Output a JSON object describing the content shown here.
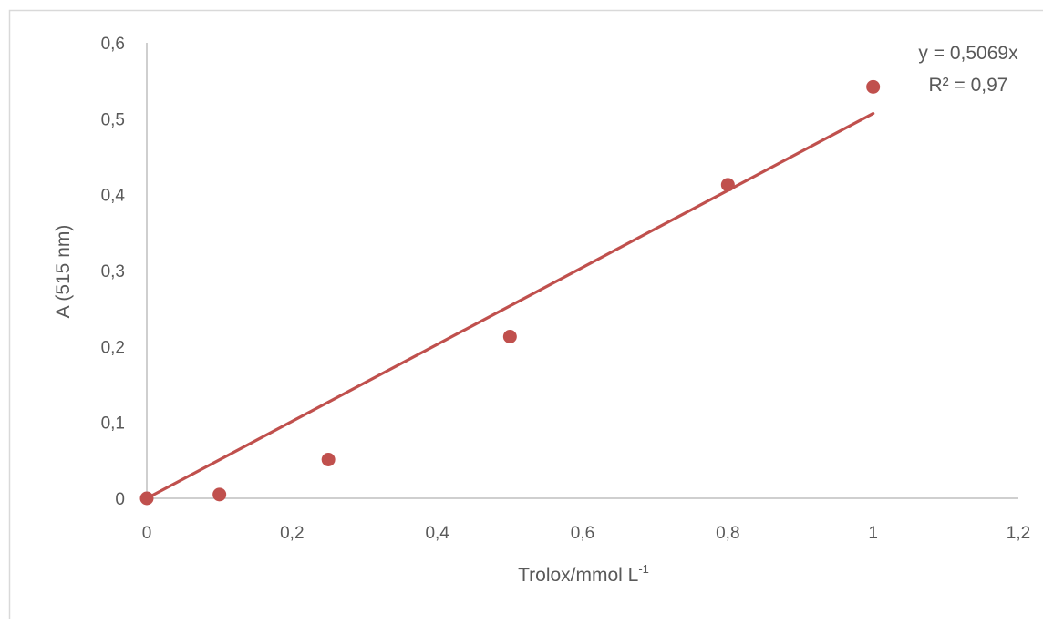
{
  "chart_data": {
    "type": "scatter",
    "title": "",
    "xlabel": "Trolox/mmol L",
    "xlabel_superscript": "-1",
    "ylabel": "A (515 nm)",
    "xlim": [
      0,
      1.2
    ],
    "ylim": [
      0,
      0.6
    ],
    "x_ticks": [
      0,
      0.2,
      0.4,
      0.6,
      0.8,
      1,
      1.2
    ],
    "x_tick_labels": [
      "0",
      "0,2",
      "0,4",
      "0,6",
      "0,8",
      "1",
      "1,2"
    ],
    "y_ticks": [
      0,
      0.1,
      0.2,
      0.3,
      0.4,
      0.5,
      0.6
    ],
    "y_tick_labels": [
      "0",
      "0,1",
      "0,2",
      "0,3",
      "0,4",
      "0,5",
      "0,6"
    ],
    "grid": false,
    "legend": false,
    "series": [
      {
        "x": [
          0,
          0.1,
          0.25,
          0.5,
          0.8,
          1
        ],
        "y": [
          0,
          0.005,
          0.051,
          0.213,
          0.413,
          0.542
        ],
        "color": "#c0504d"
      }
    ],
    "trendline": {
      "slope": 0.5069,
      "intercept": 0,
      "x_range": [
        0,
        1
      ],
      "color": "#c0504d",
      "equation_text": "y = 0,5069x",
      "r2_text": "R² = 0,97"
    }
  },
  "colors": {
    "axis": "#bfbfbf",
    "text": "#595959",
    "border": "#d9d9d9",
    "marker": "#c0504d"
  }
}
